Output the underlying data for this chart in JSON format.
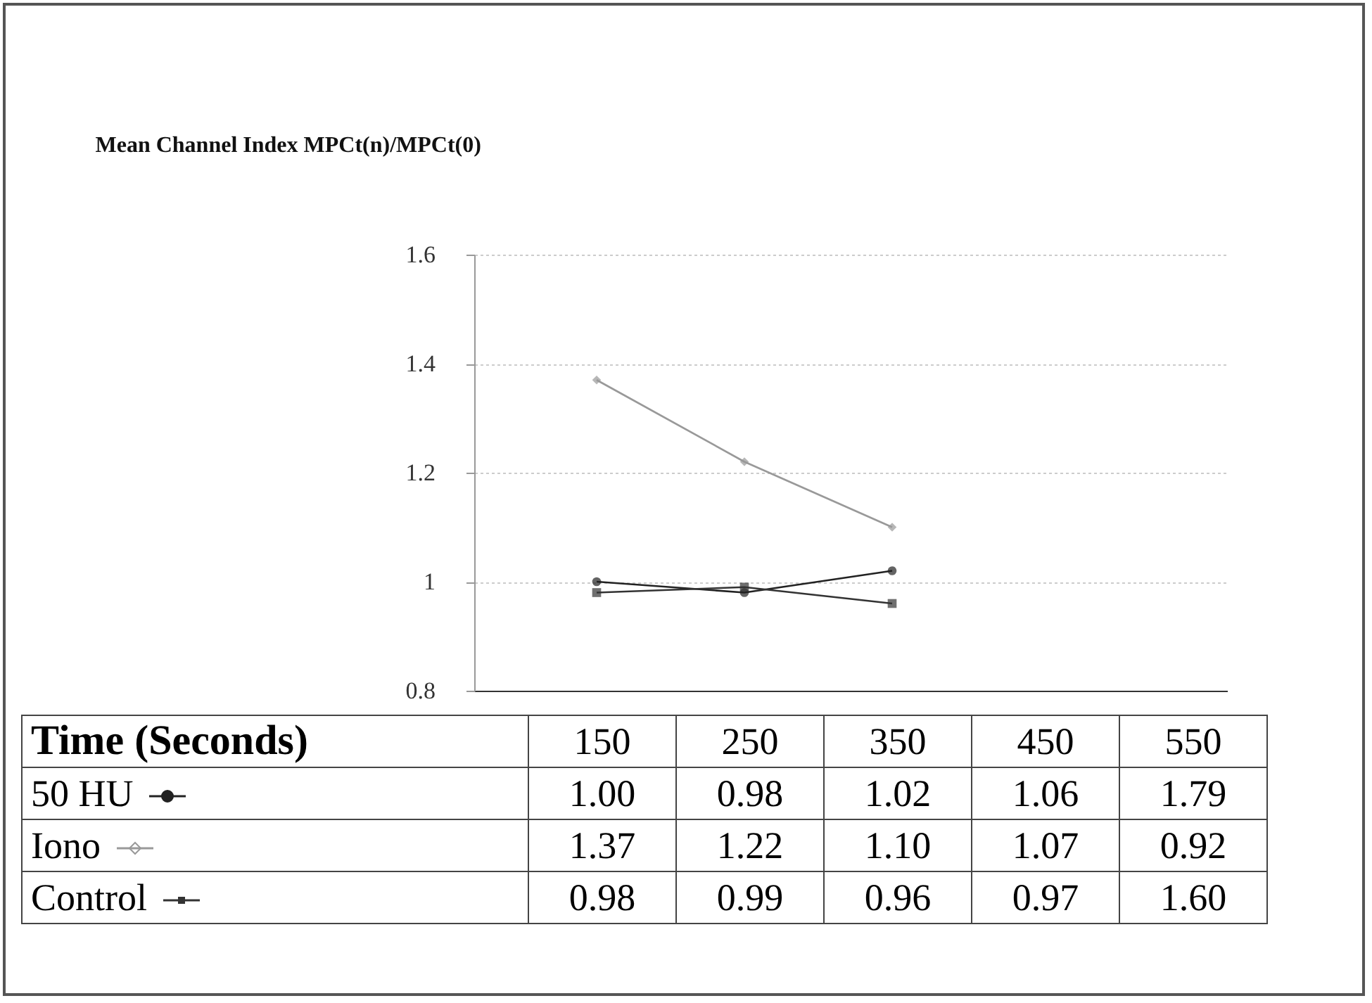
{
  "chart_data": {
    "type": "line",
    "title": "Mean Channel Index MPCt(n)/MPCt(0)",
    "xlabel": "Time (Seconds)",
    "categories": [
      "150",
      "250",
      "350",
      "450",
      "550"
    ],
    "series": [
      {
        "name": "50 HU",
        "color": "#222222",
        "marker": "circle",
        "values": [
          1.0,
          0.98,
          1.02,
          null,
          null
        ],
        "value_labels": [
          "1.00",
          "0.98",
          "1.02",
          "1.06",
          "1.79"
        ]
      },
      {
        "name": "Iono",
        "color": "#999999",
        "marker": "diamond",
        "values": [
          1.37,
          1.22,
          1.1,
          null,
          null
        ],
        "value_labels": [
          "1.37",
          "1.22",
          "1.10",
          "1.07",
          "0.92"
        ]
      },
      {
        "name": "Control",
        "color": "#333333",
        "marker": "square",
        "values": [
          0.98,
          0.99,
          0.96,
          null,
          null
        ],
        "value_labels": [
          "0.98",
          "0.99",
          "0.96",
          "0.97",
          "1.60"
        ]
      }
    ],
    "ylim": [
      0.8,
      1.6
    ],
    "yticks": [
      0.8,
      1,
      1.2,
      1.4,
      1.6
    ],
    "grid": "y",
    "legend": "bottom"
  }
}
